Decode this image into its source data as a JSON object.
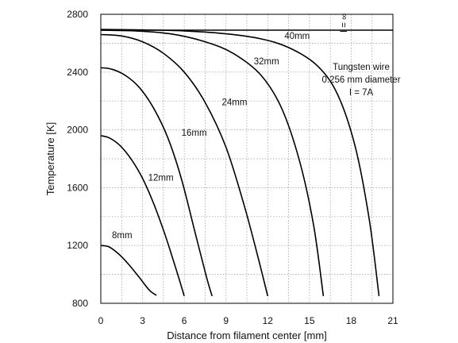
{
  "chart_data": {
    "type": "line",
    "xlabel": "Distance from filament center [mm]",
    "ylabel": "Temperature [K]",
    "xlim": [
      0,
      21
    ],
    "ylim": [
      800,
      2800
    ],
    "xticks": [
      0,
      3,
      6,
      9,
      12,
      15,
      18,
      21
    ],
    "yticks": [
      800,
      1200,
      1600,
      2000,
      2400,
      2800
    ],
    "grid": true,
    "series": [
      {
        "name": "8mm",
        "x": [
          0,
          0.6,
          1.3,
          2.0,
          2.8,
          3.5,
          4.0
        ],
        "y": [
          1200,
          1190,
          1140,
          1070,
          975,
          890,
          855
        ]
      },
      {
        "name": "12mm",
        "x": [
          0,
          0.6,
          1.4,
          2.2,
          3.0,
          3.8,
          4.6,
          5.4,
          6.0
        ],
        "y": [
          1960,
          1945,
          1890,
          1795,
          1665,
          1490,
          1280,
          1040,
          850
        ]
      },
      {
        "name": "16mm",
        "x": [
          0,
          0.8,
          1.8,
          2.8,
          3.8,
          4.8,
          5.8,
          6.8,
          7.6,
          8.0
        ],
        "y": [
          2430,
          2420,
          2375,
          2290,
          2150,
          1950,
          1660,
          1280,
          980,
          850
        ]
      },
      {
        "name": "24mm",
        "x": [
          0,
          1.5,
          3.0,
          4.5,
          6.0,
          7.5,
          9.0,
          10.3,
          11.3,
          12.0
        ],
        "y": [
          2660,
          2650,
          2610,
          2530,
          2400,
          2190,
          1880,
          1480,
          1120,
          850
        ]
      },
      {
        "name": "32mm",
        "x": [
          0,
          2.5,
          5.0,
          7.5,
          9.5,
          11.5,
          13.0,
          14.3,
          15.3,
          16.0
        ],
        "y": [
          2690,
          2685,
          2665,
          2610,
          2530,
          2380,
          2150,
          1780,
          1340,
          850
        ]
      },
      {
        "name": "40mm",
        "x": [
          0,
          3.0,
          6.0,
          9.0,
          11.5,
          13.5,
          15.5,
          17.0,
          18.3,
          19.3,
          20.0
        ],
        "y": [
          2695,
          2692,
          2685,
          2665,
          2630,
          2570,
          2450,
          2250,
          1880,
          1380,
          850
        ]
      },
      {
        "name": "I = ∞",
        "x": [
          0,
          21
        ],
        "y": [
          2690,
          2690
        ]
      }
    ],
    "annotations": [
      "Tungsten wire",
      "0.256 mm diameter",
      "I = 7A"
    ]
  }
}
